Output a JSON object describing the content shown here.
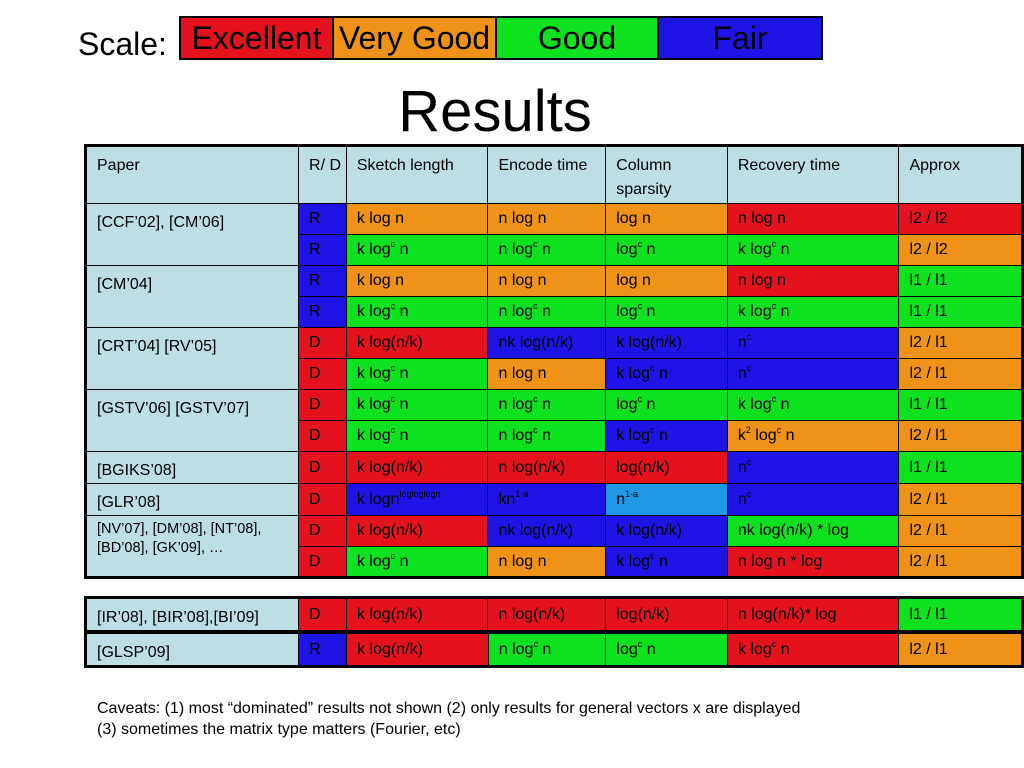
{
  "scale": {
    "label": "Scale:",
    "levels": [
      {
        "text": "Excellent",
        "color": "#e3121d"
      },
      {
        "text": "Very Good",
        "color": "#ee9317"
      },
      {
        "text": "Good",
        "color": "#0ee11e"
      },
      {
        "text": "Fair",
        "color": "#1f14e6"
      }
    ]
  },
  "title": "Results",
  "table": {
    "headers": [
      "Paper",
      "R/ D",
      "Sketch length",
      "Encode time",
      "Column sparsity",
      "Recovery time",
      "Approx"
    ],
    "groups": [
      {
        "paper": "[CCF’02], [CM’06]",
        "rows": [
          [
            {
              "t": "R",
              "c": "f"
            },
            {
              "t": "k log n",
              "c": "vg"
            },
            {
              "t": "n log n",
              "c": "vg"
            },
            {
              "t": "log n",
              "c": "vg"
            },
            {
              "t": "n log n",
              "c": "exc"
            },
            {
              "t": "l2 / l2",
              "c": "exc"
            }
          ],
          [
            {
              "t": "R",
              "c": "f"
            },
            {
              "t": "k log^c n",
              "c": "g"
            },
            {
              "t": "n log^c n",
              "c": "g"
            },
            {
              "t": "log^c n",
              "c": "g"
            },
            {
              "t": "k log^c n",
              "c": "g"
            },
            {
              "t": "l2 / l2",
              "c": "vg"
            }
          ]
        ]
      },
      {
        "paper": "[CM’04]",
        "rows": [
          [
            {
              "t": "R",
              "c": "f"
            },
            {
              "t": "k log n",
              "c": "vg"
            },
            {
              "t": "n log n",
              "c": "vg"
            },
            {
              "t": "log n",
              "c": "vg"
            },
            {
              "t": "n log n",
              "c": "exc"
            },
            {
              "t": "l1 / l1",
              "c": "g"
            }
          ],
          [
            {
              "t": "R",
              "c": "f"
            },
            {
              "t": "k log^c n",
              "c": "g"
            },
            {
              "t": "n log^c n",
              "c": "g"
            },
            {
              "t": "log^c n",
              "c": "g"
            },
            {
              "t": "k log^c n",
              "c": "g"
            },
            {
              "t": "l1 / l1",
              "c": "g"
            }
          ]
        ]
      },
      {
        "paper": "[CRT’04] [RV’05]",
        "rows": [
          [
            {
              "t": "D",
              "c": "exc"
            },
            {
              "t": "k log(n/k)",
              "c": "exc"
            },
            {
              "t": "nk log(n/k)",
              "c": "f"
            },
            {
              "t": "k log(n/k)",
              "c": "f"
            },
            {
              "t": "n^c",
              "c": "f"
            },
            {
              "t": "l2 / l1",
              "c": "vg"
            }
          ],
          [
            {
              "t": "D",
              "c": "exc"
            },
            {
              "t": "k log^c n",
              "c": "g"
            },
            {
              "t": "n log n",
              "c": "vg"
            },
            {
              "t": "k log^c n",
              "c": "f"
            },
            {
              "t": "n^c",
              "c": "f"
            },
            {
              "t": "l2 / l1",
              "c": "vg"
            }
          ]
        ]
      },
      {
        "paper": "[GSTV’06] [GSTV’07]",
        "rows": [
          [
            {
              "t": "D",
              "c": "exc"
            },
            {
              "t": "k log^c n",
              "c": "g"
            },
            {
              "t": "n log^c n",
              "c": "g"
            },
            {
              "t": "log^c n",
              "c": "g"
            },
            {
              "t": "k log^c n",
              "c": "g"
            },
            {
              "t": "l1 / l1",
              "c": "g"
            }
          ],
          [
            {
              "t": "D",
              "c": "exc"
            },
            {
              "t": "k log^c n",
              "c": "g"
            },
            {
              "t": "n log^c n",
              "c": "g"
            },
            {
              "t": "k log^c n",
              "c": "f"
            },
            {
              "t": "k^2 log^c n",
              "c": "vg"
            },
            {
              "t": "l2 / l1",
              "c": "vg"
            }
          ]
        ]
      },
      {
        "paper": "[BGIKS’08]",
        "rows": [
          [
            {
              "t": "D",
              "c": "exc"
            },
            {
              "t": "k log(n/k)",
              "c": "exc"
            },
            {
              "t": "n log(n/k)",
              "c": "exc"
            },
            {
              "t": "log(n/k)",
              "c": "exc"
            },
            {
              "t": "n^c",
              "c": "f"
            },
            {
              "t": "l1 / l1",
              "c": "g"
            }
          ]
        ]
      },
      {
        "paper": "[GLR’08]",
        "rows": [
          [
            {
              "t": "D",
              "c": "exc"
            },
            {
              "t": "k logn^logloglogn",
              "c": "f"
            },
            {
              "t": "kn^1-a",
              "c": "f"
            },
            {
              "t": "n^1-a",
              "c": "lb"
            },
            {
              "t": "n^c",
              "c": "f"
            },
            {
              "t": "l2 / l1",
              "c": "vg"
            }
          ]
        ]
      },
      {
        "paper": "[NV’07], [DM’08], [NT’08], [BD’08], [GK’09], …",
        "small": true,
        "rows": [
          [
            {
              "t": "D",
              "c": "exc"
            },
            {
              "t": "k log(n/k)",
              "c": "exc"
            },
            {
              "t": "nk log(n/k)",
              "c": "f"
            },
            {
              "t": "k log(n/k)",
              "c": "f"
            },
            {
              "t": "nk log(n/k) * log",
              "c": "g"
            },
            {
              "t": "l2 / l1",
              "c": "vg"
            }
          ],
          [
            {
              "t": "D",
              "c": "exc"
            },
            {
              "t": "k log^c n",
              "c": "g"
            },
            {
              "t": "n log n",
              "c": "vg"
            },
            {
              "t": "k log^c n",
              "c": "f"
            },
            {
              "t": "n log n * log",
              "c": "exc"
            },
            {
              "t": "l2 / l1",
              "c": "vg"
            }
          ]
        ]
      }
    ]
  },
  "bottom": [
    {
      "paper": "[IR’08], [BIR’08],[BI’09]",
      "cells": [
        {
          "t": "D",
          "c": "exc"
        },
        {
          "t": "k log(n/k)",
          "c": "exc"
        },
        {
          "t": "n log(n/k)",
          "c": "exc"
        },
        {
          "t": "log(n/k)",
          "c": "exc"
        },
        {
          "t": "n log(n/k)* log",
          "c": "exc"
        },
        {
          "t": "l1 / l1",
          "c": "g"
        }
      ]
    },
    {
      "paper": "[GLSP’09]",
      "cells": [
        {
          "t": "R",
          "c": "f"
        },
        {
          "t": "k log(n/k)",
          "c": "exc"
        },
        {
          "t": "n log^c n",
          "c": "g"
        },
        {
          "t": "log^c n",
          "c": "g"
        },
        {
          "t": "k log^c n",
          "c": "exc"
        },
        {
          "t": "l2 / l1",
          "c": "vg"
        }
      ]
    }
  ],
  "caveats": {
    "line1": "Caveats: (1) most “dominated” results not shown (2) only results for general vectors x are displayed",
    "line2": "(3) sometimes the matrix type matters (Fourier, etc)"
  },
  "colors": {
    "exc": "#e3121d",
    "vg": "#ee9317",
    "g": "#0ee11e",
    "f": "#1f14e6",
    "lb": "#1f98e6",
    "paper_bg": "#bcdfe4"
  }
}
